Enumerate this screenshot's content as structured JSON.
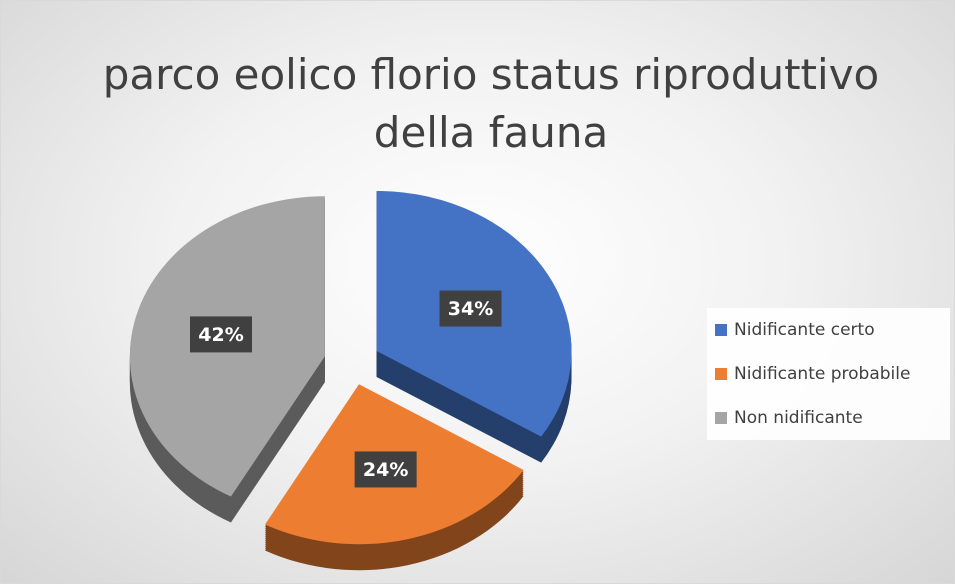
{
  "chart_data": {
    "type": "pie",
    "title": "parco eolico florio status riproduttivo della fauna",
    "categories": [
      "Nidificante certo",
      "Nidificante probabile",
      "Non nidificante"
    ],
    "values": [
      34,
      24,
      42
    ],
    "value_labels": [
      "34%",
      "24%",
      "42%"
    ],
    "colors": [
      "#4472c4",
      "#ed7d31",
      "#a5a5a5"
    ],
    "legend": "right"
  }
}
